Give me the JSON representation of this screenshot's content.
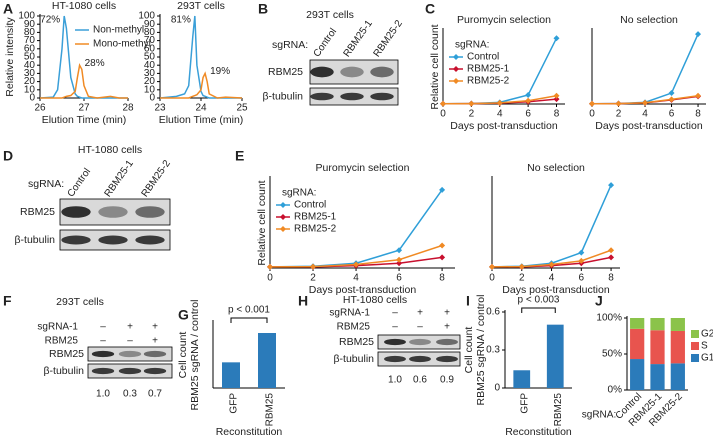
{
  "panel_labels": [
    "A",
    "B",
    "C",
    "D",
    "E",
    "F",
    "G",
    "H",
    "I",
    "J"
  ],
  "chart_data": [
    {
      "type": "line",
      "title": "HT-1080 cells",
      "xlabel": "Elution Time (min)",
      "ylabel": "Relative intensity",
      "x": [
        26,
        26.3,
        26.4,
        26.5,
        26.55,
        26.6,
        26.7,
        26.8,
        26.85,
        26.9,
        26.95,
        27.0,
        27.1,
        27.3,
        27.6,
        27.8,
        28
      ],
      "xlim": [
        26,
        28
      ],
      "xticks": [
        26,
        27,
        28
      ],
      "ylim": [
        0,
        100
      ],
      "yticks": [
        0,
        10,
        20,
        30,
        40,
        50,
        60,
        70,
        80,
        90,
        100
      ],
      "legend": "upper right",
      "series": [
        {
          "name": "Non-methyl",
          "color": "#3a9fd8",
          "values": [
            0,
            1,
            10,
            60,
            100,
            85,
            25,
            5,
            2,
            1,
            0,
            0,
            0,
            0,
            0,
            0,
            0
          ]
        },
        {
          "name": "Mono-methyl",
          "color": "#f08a24",
          "values": [
            0,
            0,
            0,
            0,
            1,
            2,
            3,
            8,
            25,
            40,
            35,
            15,
            2,
            0,
            2,
            0,
            0
          ]
        }
      ],
      "annotations": [
        "72%",
        "28%"
      ]
    },
    {
      "type": "line",
      "title": "293T cells",
      "xlabel": "Elution Time (min)",
      "x": [
        23,
        23.4,
        23.6,
        23.7,
        23.8,
        23.85,
        23.9,
        24.0,
        24.05,
        24.1,
        24.15,
        24.2,
        24.4,
        24.6,
        25
      ],
      "xlim": [
        23,
        25
      ],
      "xticks": [
        23,
        24,
        25
      ],
      "ylim": [
        0,
        100
      ],
      "yticks": [
        0,
        10,
        20,
        30,
        40,
        50,
        60,
        70,
        80,
        90,
        100
      ],
      "series": [
        {
          "color": "#3a9fd8",
          "values": [
            0,
            2,
            5,
            15,
            75,
            100,
            40,
            8,
            3,
            2,
            1,
            0,
            0,
            0,
            0
          ]
        },
        {
          "color": "#f08a24",
          "values": [
            0,
            0,
            0,
            0,
            2,
            3,
            4,
            10,
            25,
            30,
            20,
            5,
            0,
            1,
            0
          ]
        }
      ],
      "annotations": [
        "81%",
        "19%"
      ]
    },
    {
      "type": "line",
      "title": "Puromycin selection",
      "xlabel": "Days post-transduction",
      "ylabel": "Relative cell count",
      "x": [
        0,
        2,
        4,
        6,
        8
      ],
      "xlim": [
        0,
        8.6
      ],
      "xticks": [
        0,
        2,
        4,
        6,
        8
      ],
      "ylim": [
        0,
        2700
      ],
      "marker": "diamond",
      "legend": "center left",
      "legend_title": "sgRNA:",
      "series": [
        {
          "name": "Control",
          "color": "#2f9fd8",
          "values": [
            10,
            20,
            60,
            330,
            2400
          ]
        },
        {
          "name": "RBM25-1",
          "color": "#c8102e",
          "values": [
            10,
            15,
            30,
            80,
            180
          ]
        },
        {
          "name": "RBM25-2",
          "color": "#f08a24",
          "values": [
            10,
            15,
            40,
            120,
            300
          ]
        }
      ]
    },
    {
      "type": "line",
      "title": "No selection",
      "xlabel": "Days post-transduction",
      "x": [
        0,
        2,
        4,
        6,
        8
      ],
      "xlim": [
        0,
        8.6
      ],
      "xticks": [
        0,
        2,
        4,
        6,
        8
      ],
      "ylim": [
        0,
        2700
      ],
      "marker": "diamond",
      "series": [
        {
          "color": "#2f9fd8",
          "values": [
            10,
            20,
            60,
            400,
            2550
          ]
        },
        {
          "color": "#c8102e",
          "values": [
            10,
            15,
            40,
            150,
            280
          ]
        },
        {
          "color": "#f08a24",
          "values": [
            10,
            15,
            45,
            170,
            300
          ]
        }
      ]
    },
    {
      "type": "line",
      "title": "Puromycin selection",
      "xlabel": "Days post-transduction",
      "ylabel": "Relative cell count",
      "x": [
        0,
        2,
        4,
        6,
        8
      ],
      "xlim": [
        0,
        8.6
      ],
      "xticks": [
        0,
        2,
        4,
        6,
        8
      ],
      "ylim": [
        0,
        760
      ],
      "marker": "diamond",
      "legend": "center left",
      "legend_title": "sgRNA:",
      "series": [
        {
          "name": "Control",
          "color": "#2f9fd8",
          "values": [
            10,
            15,
            40,
            150,
            660
          ]
        },
        {
          "name": "RBM25-1",
          "color": "#c8102e",
          "values": [
            10,
            10,
            20,
            40,
            90
          ]
        },
        {
          "name": "RBM25-2",
          "color": "#f08a24",
          "values": [
            10,
            12,
            30,
            70,
            190
          ]
        }
      ]
    },
    {
      "type": "line",
      "title": "No selection",
      "xlabel": "Days post-transduction",
      "x": [
        0,
        2,
        4,
        6,
        8
      ],
      "xlim": [
        0,
        8.6
      ],
      "xticks": [
        0,
        2,
        4,
        6,
        8
      ],
      "ylim": [
        0,
        760
      ],
      "marker": "diamond",
      "series": [
        {
          "color": "#2f9fd8",
          "values": [
            10,
            15,
            40,
            130,
            700
          ]
        },
        {
          "color": "#c8102e",
          "values": [
            10,
            10,
            20,
            40,
            90
          ]
        },
        {
          "color": "#f08a24",
          "values": [
            10,
            12,
            30,
            60,
            150
          ]
        }
      ]
    },
    {
      "type": "bar",
      "ylabel": [
        "Cell count",
        "RBM25 sgRNA / control"
      ],
      "xlabel": "Reconstitution",
      "categories": [
        "GFP",
        "RBM25"
      ],
      "values": [
        0.14,
        0.3
      ],
      "color": "#2b7bba",
      "ylim": [
        0,
        0.36
      ],
      "annotation": "p < 0.001"
    },
    {
      "type": "bar",
      "ylabel": [
        "Cell count",
        "RBM25 sgRNA / control"
      ],
      "xlabel": "Reconstitution",
      "categories": [
        "GFP",
        "RBM25"
      ],
      "values": [
        0.14,
        0.5
      ],
      "color": "#2b7bba",
      "ylim": [
        0,
        0.6
      ],
      "yticks": [
        0,
        0.3,
        0.6
      ],
      "annotation": "p < 0.003"
    },
    {
      "type": "stacked_bar",
      "category_label": "sgRNA:",
      "categories": [
        "Control",
        "RBM25-1",
        "RBM25-2"
      ],
      "ylim": [
        0,
        100
      ],
      "yticks": [
        {
          "value": 0,
          "label": "0%"
        },
        {
          "value": 50,
          "label": "50%"
        },
        {
          "value": 100,
          "label": "100%"
        }
      ],
      "legend": "right",
      "series": [
        {
          "name": "G1",
          "color": "#2b7bba",
          "values": [
            43,
            36,
            37
          ]
        },
        {
          "name": "S",
          "color": "#e8544e",
          "values": [
            42,
            47,
            45
          ]
        },
        {
          "name": "G2",
          "color": "#8bc34a",
          "values": [
            15,
            17,
            18
          ]
        }
      ]
    }
  ],
  "blots": [
    {
      "title": "293T cells",
      "row_label": "sgRNA:",
      "lanes": [
        "Control",
        "RBM25-1",
        "RBM25-2"
      ],
      "bands": [
        "RBM25",
        "β-tubulin"
      ]
    },
    {
      "title": "HT-1080 cells",
      "row_label": "sgRNA:",
      "lanes": [
        "Control",
        "RBM25-1",
        "RBM25-2"
      ],
      "bands": [
        "RBM25",
        "β-tubulin"
      ]
    },
    {
      "title": "293T cells",
      "conditions": [
        {
          "name": "sgRNA-1",
          "signs": [
            "–",
            "+",
            "+"
          ]
        },
        {
          "name": "RBM25",
          "signs": [
            "–",
            "–",
            "+"
          ]
        }
      ],
      "bands": [
        "RBM25",
        "β-tubulin"
      ],
      "quant": [
        "1.0",
        "0.3",
        "0.7"
      ]
    },
    {
      "title": "HT-1080 cells",
      "conditions": [
        {
          "name": "sgRNA-1",
          "signs": [
            "–",
            "+",
            "+"
          ]
        },
        {
          "name": "RBM25",
          "signs": [
            "–",
            "–",
            "+"
          ]
        }
      ],
      "bands": [
        "RBM25",
        "β-tubulin"
      ],
      "quant": [
        "1.0",
        "0.6",
        "0.9"
      ]
    }
  ]
}
